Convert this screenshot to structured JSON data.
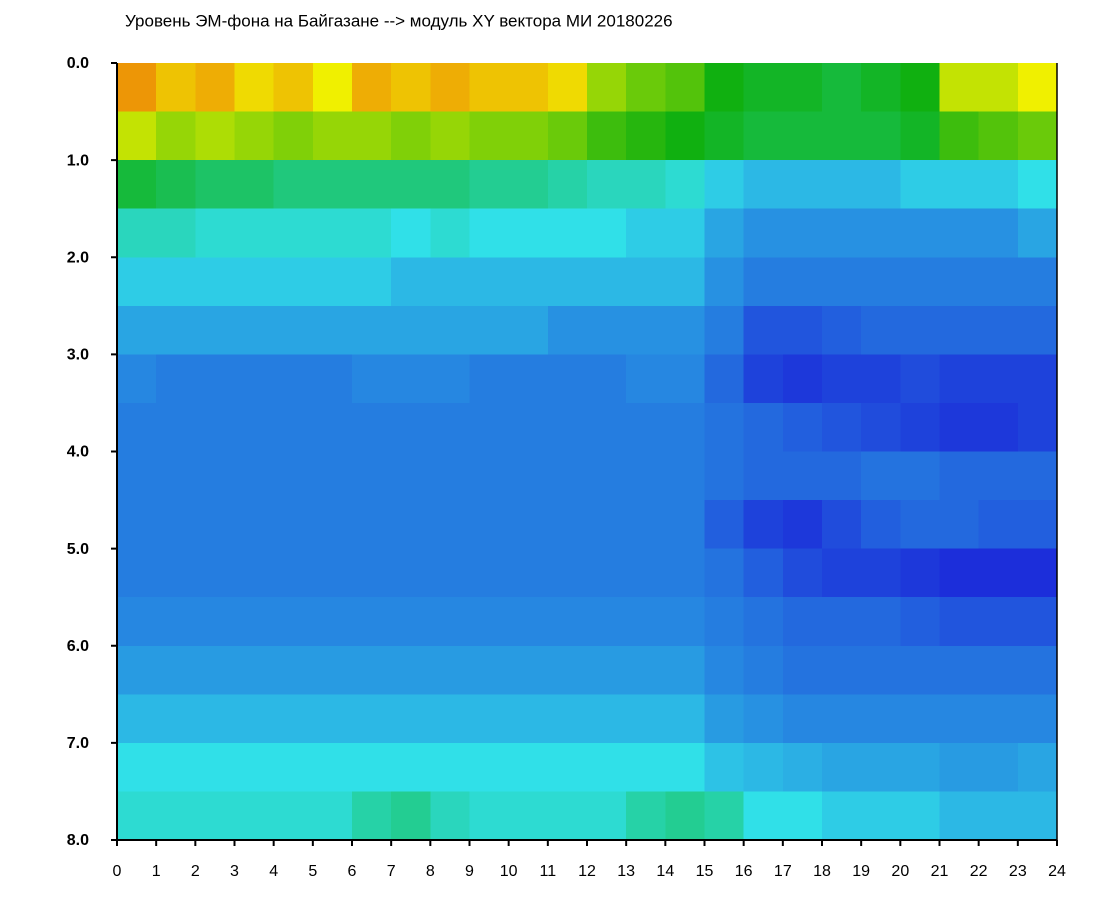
{
  "chart_data": {
    "type": "heatmap",
    "title": "Уровень ЭМ-фона на Байгазане  --> модуль XY вектора МИ  20180226",
    "xlim": [
      0,
      24
    ],
    "xticks": [
      0,
      1,
      2,
      3,
      4,
      5,
      6,
      7,
      8,
      9,
      10,
      11,
      12,
      13,
      14,
      15,
      16,
      17,
      18,
      19,
      20,
      21,
      22,
      23,
      24
    ],
    "ylim": [
      0,
      8
    ],
    "y_inverted": true,
    "yticks": [
      {
        "value": 0,
        "label": "0.0"
      },
      {
        "value": 1,
        "label": "1.0"
      },
      {
        "value": 2,
        "label": "2.0"
      },
      {
        "value": 3,
        "label": "3.0"
      },
      {
        "value": 4,
        "label": "4.0"
      },
      {
        "value": 5,
        "label": "5.0"
      },
      {
        "value": 6,
        "label": "6.0"
      },
      {
        "value": 7,
        "label": "7.0"
      },
      {
        "value": 8,
        "label": "8.0"
      }
    ],
    "x_bins": [
      0,
      1,
      2,
      3,
      4,
      5,
      6,
      7,
      8,
      9,
      10,
      11,
      12,
      13,
      14,
      15,
      16,
      17,
      18,
      19,
      20,
      21,
      22,
      23,
      24
    ],
    "y_bins": [
      0,
      0.5,
      1,
      1.5,
      2,
      2.5,
      3,
      3.5,
      4,
      4.5,
      5,
      5.5,
      6,
      6.5,
      7,
      7.5,
      8
    ],
    "zlim": [
      0,
      4
    ],
    "colorscale": [
      "#1a1ad8",
      "#30e0e8",
      "#10b010",
      "#f0f000",
      "#e81010"
    ],
    "z": [
      [
        3.4,
        3.2,
        3.3,
        3.1,
        3.2,
        3.0,
        3.3,
        3.2,
        3.3,
        3.2,
        3.2,
        3.1,
        2.6,
        2.4,
        2.3,
        2.0,
        1.9,
        1.9,
        1.8,
        1.9,
        2.0,
        2.8,
        2.8,
        3.0
      ],
      [
        2.8,
        2.6,
        2.7,
        2.6,
        2.5,
        2.6,
        2.6,
        2.5,
        2.6,
        2.5,
        2.5,
        2.4,
        2.2,
        2.1,
        2.0,
        1.9,
        1.8,
        1.8,
        1.8,
        1.8,
        1.9,
        2.2,
        2.3,
        2.4
      ],
      [
        1.8,
        1.7,
        1.6,
        1.6,
        1.5,
        1.5,
        1.5,
        1.5,
        1.5,
        1.4,
        1.4,
        1.3,
        1.2,
        1.2,
        1.1,
        0.9,
        0.8,
        0.8,
        0.8,
        0.8,
        0.9,
        0.9,
        0.9,
        1.0
      ],
      [
        1.2,
        1.2,
        1.1,
        1.1,
        1.1,
        1.1,
        1.1,
        1.0,
        1.1,
        1.0,
        1.0,
        1.0,
        1.0,
        0.9,
        0.9,
        0.7,
        0.6,
        0.6,
        0.6,
        0.6,
        0.6,
        0.6,
        0.6,
        0.7
      ],
      [
        0.9,
        0.9,
        0.9,
        0.9,
        0.9,
        0.9,
        0.9,
        0.8,
        0.8,
        0.8,
        0.8,
        0.8,
        0.8,
        0.8,
        0.8,
        0.6,
        0.5,
        0.5,
        0.5,
        0.5,
        0.5,
        0.5,
        0.5,
        0.5
      ],
      [
        0.7,
        0.7,
        0.7,
        0.7,
        0.7,
        0.7,
        0.7,
        0.7,
        0.7,
        0.7,
        0.7,
        0.6,
        0.6,
        0.6,
        0.6,
        0.5,
        0.3,
        0.3,
        0.35,
        0.4,
        0.4,
        0.4,
        0.4,
        0.4
      ],
      [
        0.55,
        0.5,
        0.5,
        0.5,
        0.5,
        0.5,
        0.55,
        0.55,
        0.55,
        0.5,
        0.5,
        0.5,
        0.5,
        0.55,
        0.55,
        0.4,
        0.2,
        0.15,
        0.2,
        0.2,
        0.25,
        0.2,
        0.2,
        0.2
      ],
      [
        0.5,
        0.5,
        0.5,
        0.5,
        0.5,
        0.5,
        0.5,
        0.5,
        0.5,
        0.5,
        0.5,
        0.5,
        0.5,
        0.5,
        0.5,
        0.45,
        0.4,
        0.35,
        0.3,
        0.25,
        0.2,
        0.15,
        0.15,
        0.2
      ],
      [
        0.5,
        0.5,
        0.5,
        0.5,
        0.5,
        0.5,
        0.5,
        0.5,
        0.5,
        0.5,
        0.5,
        0.5,
        0.5,
        0.5,
        0.5,
        0.45,
        0.4,
        0.4,
        0.4,
        0.45,
        0.45,
        0.4,
        0.4,
        0.4
      ],
      [
        0.5,
        0.5,
        0.5,
        0.5,
        0.5,
        0.5,
        0.5,
        0.5,
        0.5,
        0.5,
        0.5,
        0.5,
        0.5,
        0.5,
        0.5,
        0.35,
        0.2,
        0.15,
        0.25,
        0.35,
        0.4,
        0.4,
        0.35,
        0.35
      ],
      [
        0.5,
        0.5,
        0.5,
        0.5,
        0.5,
        0.5,
        0.5,
        0.5,
        0.5,
        0.5,
        0.5,
        0.5,
        0.5,
        0.5,
        0.5,
        0.45,
        0.35,
        0.25,
        0.2,
        0.2,
        0.15,
        0.1,
        0.1,
        0.1
      ],
      [
        0.55,
        0.55,
        0.55,
        0.55,
        0.55,
        0.55,
        0.55,
        0.55,
        0.55,
        0.55,
        0.55,
        0.55,
        0.55,
        0.55,
        0.55,
        0.5,
        0.45,
        0.4,
        0.4,
        0.4,
        0.35,
        0.3,
        0.3,
        0.3
      ],
      [
        0.65,
        0.65,
        0.65,
        0.65,
        0.65,
        0.65,
        0.65,
        0.65,
        0.65,
        0.65,
        0.65,
        0.65,
        0.65,
        0.65,
        0.65,
        0.55,
        0.5,
        0.45,
        0.45,
        0.45,
        0.45,
        0.45,
        0.45,
        0.45
      ],
      [
        0.8,
        0.8,
        0.8,
        0.8,
        0.8,
        0.8,
        0.8,
        0.8,
        0.8,
        0.8,
        0.8,
        0.8,
        0.8,
        0.8,
        0.8,
        0.65,
        0.6,
        0.55,
        0.55,
        0.55,
        0.55,
        0.55,
        0.55,
        0.55
      ],
      [
        1.0,
        1.0,
        1.0,
        1.0,
        1.0,
        1.0,
        1.0,
        1.0,
        1.0,
        1.0,
        1.0,
        1.0,
        1.0,
        1.0,
        1.0,
        0.85,
        0.8,
        0.75,
        0.7,
        0.7,
        0.7,
        0.65,
        0.65,
        0.7
      ],
      [
        1.1,
        1.1,
        1.1,
        1.1,
        1.1,
        1.1,
        1.3,
        1.4,
        1.2,
        1.1,
        1.1,
        1.1,
        1.1,
        1.3,
        1.4,
        1.3,
        1.0,
        1.0,
        0.9,
        0.9,
        0.9,
        0.8,
        0.8,
        0.8
      ]
    ]
  }
}
